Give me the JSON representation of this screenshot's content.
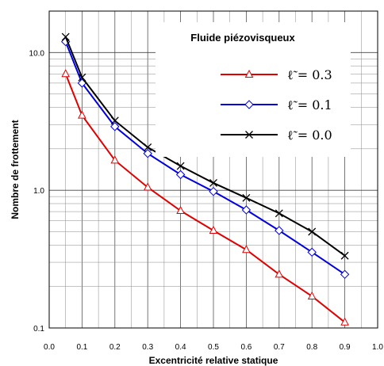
{
  "chart_data": {
    "type": "line",
    "title": "Fluide piézovisqueux",
    "xlabel": "Excentricité relative statique",
    "ylabel": "Nombre de frottement",
    "xlim": [
      0.0,
      1.0
    ],
    "ylim": [
      0.1,
      20.0
    ],
    "yscale": "log",
    "grid": true,
    "legend_position": "top-right",
    "x_ticks": [
      "0.0",
      "0.1",
      "0.2",
      "0.3",
      "0.4",
      "0.5",
      "0.6",
      "0.7",
      "0.8",
      "0.9",
      "1.0"
    ],
    "y_ticks": [
      "0.1",
      "1.0",
      "10.0"
    ],
    "x": [
      0.05,
      0.1,
      0.2,
      0.3,
      0.4,
      0.5,
      0.6,
      0.7,
      0.8,
      0.9
    ],
    "series": [
      {
        "name": "ℓ̃ = 0.3",
        "color": "#e00000",
        "marker": "triangle",
        "values": [
          7.0,
          3.5,
          1.65,
          1.05,
          0.71,
          0.51,
          0.37,
          0.245,
          0.17,
          0.11
        ]
      },
      {
        "name": "ℓ̃ = 0.1",
        "color": "#0000e0",
        "marker": "diamond",
        "values": [
          12.0,
          6.0,
          2.9,
          1.85,
          1.3,
          0.98,
          0.72,
          0.51,
          0.355,
          0.245
        ]
      },
      {
        "name": "ℓ̃ = 0.0",
        "color": "#000000",
        "marker": "cross",
        "values": [
          13.0,
          6.6,
          3.2,
          2.05,
          1.5,
          1.13,
          0.88,
          0.68,
          0.5,
          0.335
        ]
      }
    ]
  }
}
